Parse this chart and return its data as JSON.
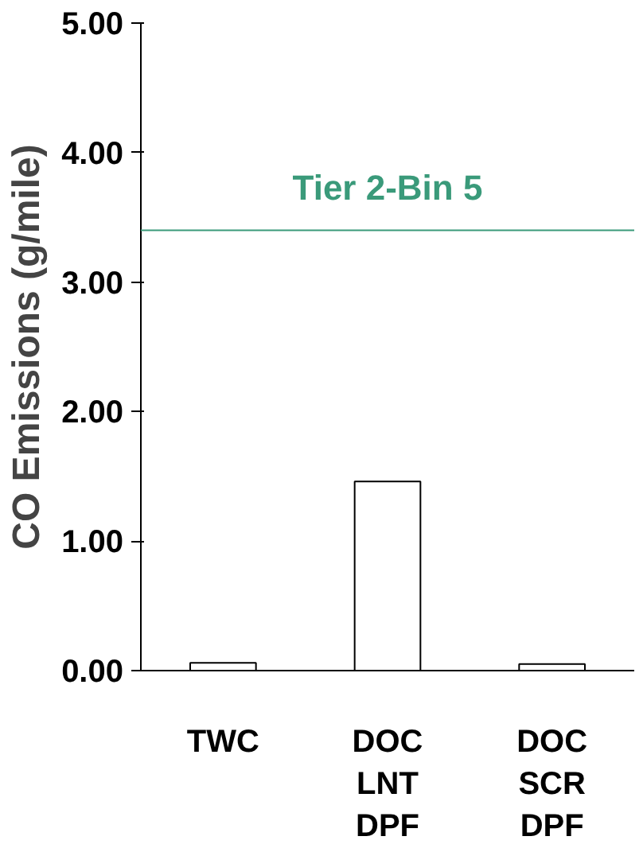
{
  "chart_data": {
    "type": "bar",
    "ylabel": "CO Emissions (g/mile)",
    "categories": [
      "TWC",
      "DOC\nLNT\nDPF",
      "DOC\nSCR\nDPF"
    ],
    "values": [
      0.06,
      1.46,
      0.05
    ],
    "color": "#ffffff",
    "ylim": [
      0,
      5
    ],
    "yticks": [
      {
        "value": 0,
        "label": "0.00"
      },
      {
        "value": 1,
        "label": "1.00"
      },
      {
        "value": 2,
        "label": "2.00"
      },
      {
        "value": 3,
        "label": "3.00"
      },
      {
        "value": 4,
        "label": "4.00"
      },
      {
        "value": 5,
        "label": "5.00"
      }
    ],
    "ref_lines": [
      {
        "axis": "y",
        "value": 3.4,
        "label": "Tier 2-Bin 5",
        "color": "#3a9a7a"
      }
    ],
    "grid": false
  }
}
